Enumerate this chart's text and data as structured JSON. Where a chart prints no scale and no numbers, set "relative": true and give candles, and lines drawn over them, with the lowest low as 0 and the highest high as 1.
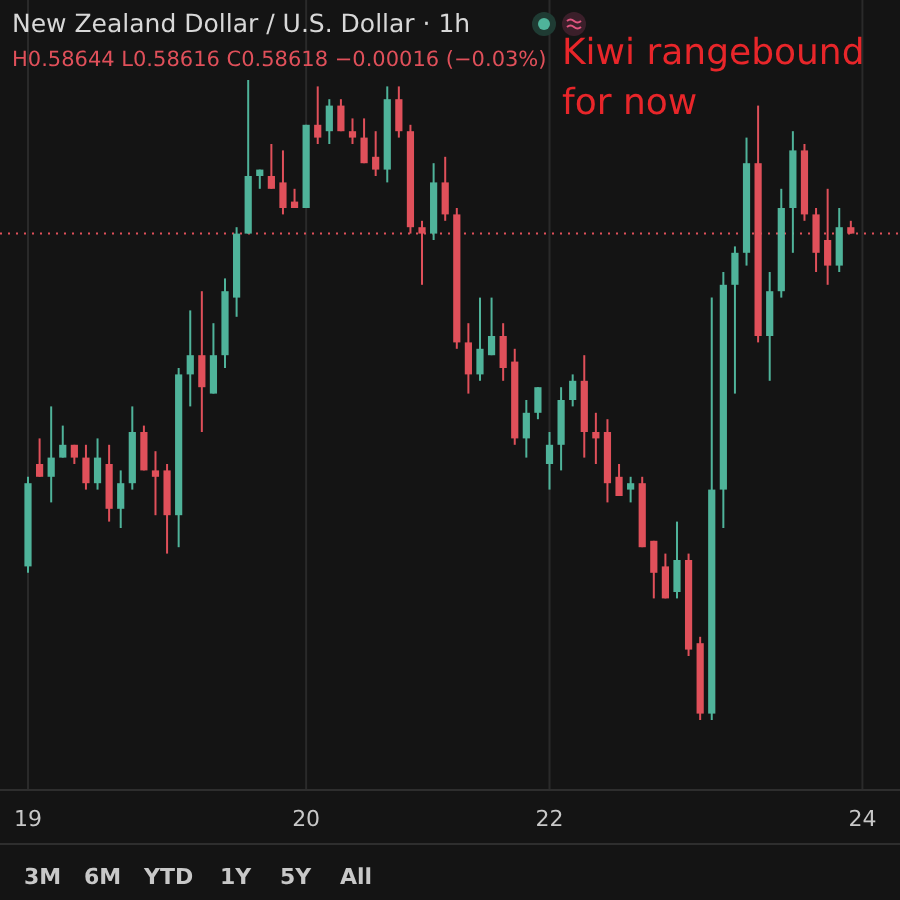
{
  "chart_data": {
    "type": "candlestick",
    "title": "New Zealand Dollar / U.S. Dollar · 1h",
    "subtitle": "H0.58644 L0.58616 C0.58618 −0.00016 (−0.03%)",
    "relative": true,
    "grid": "x",
    "categories": [
      "19",
      null,
      null,
      null,
      null,
      null,
      null,
      null,
      null,
      null,
      null,
      null,
      null,
      null,
      null,
      null,
      null,
      null,
      null,
      null,
      null,
      null,
      null,
      null,
      "20",
      null,
      null,
      null,
      null,
      null,
      null,
      null,
      null,
      null,
      null,
      null,
      null,
      null,
      null,
      null,
      null,
      null,
      null,
      null,
      null,
      "22",
      null,
      null,
      null,
      null,
      null,
      null,
      null,
      null,
      null,
      null,
      null,
      null,
      null,
      null,
      null,
      null,
      null,
      null,
      null,
      null,
      null,
      null,
      null,
      null,
      null,
      null,
      "24",
      null
    ],
    "ohlc": [
      [
        0.24,
        0.38,
        0.23,
        0.37
      ],
      [
        0.4,
        0.44,
        0.38,
        0.38
      ],
      [
        0.38,
        0.49,
        0.34,
        0.41
      ],
      [
        0.41,
        0.46,
        0.41,
        0.43
      ],
      [
        0.43,
        0.43,
        0.4,
        0.41
      ],
      [
        0.41,
        0.43,
        0.36,
        0.37
      ],
      [
        0.37,
        0.44,
        0.36,
        0.41
      ],
      [
        0.4,
        0.43,
        0.31,
        0.33
      ],
      [
        0.33,
        0.39,
        0.3,
        0.37
      ],
      [
        0.37,
        0.49,
        0.36,
        0.45
      ],
      [
        0.45,
        0.46,
        0.39,
        0.39
      ],
      [
        0.39,
        0.42,
        0.32,
        0.38
      ],
      [
        0.39,
        0.4,
        0.26,
        0.32
      ],
      [
        0.32,
        0.55,
        0.27,
        0.54
      ],
      [
        0.54,
        0.64,
        0.49,
        0.57
      ],
      [
        0.57,
        0.67,
        0.45,
        0.52
      ],
      [
        0.51,
        0.62,
        0.51,
        0.57
      ],
      [
        0.57,
        0.69,
        0.55,
        0.67
      ],
      [
        0.66,
        0.77,
        0.63,
        0.76
      ],
      [
        0.76,
        1.0,
        0.76,
        0.85
      ],
      [
        0.85,
        0.86,
        0.83,
        0.86
      ],
      [
        0.85,
        0.9,
        0.83,
        0.83
      ],
      [
        0.84,
        0.89,
        0.79,
        0.8
      ],
      [
        0.81,
        0.83,
        0.8,
        0.8
      ],
      [
        0.8,
        0.93,
        0.8,
        0.93
      ],
      [
        0.93,
        0.99,
        0.9,
        0.91
      ],
      [
        0.92,
        0.97,
        0.9,
        0.96
      ],
      [
        0.96,
        0.97,
        0.92,
        0.92
      ],
      [
        0.92,
        0.94,
        0.9,
        0.91
      ],
      [
        0.91,
        0.94,
        0.87,
        0.87
      ],
      [
        0.88,
        0.92,
        0.85,
        0.86
      ],
      [
        0.86,
        0.99,
        0.84,
        0.97
      ],
      [
        0.97,
        0.99,
        0.91,
        0.92
      ],
      [
        0.92,
        0.93,
        0.76,
        0.77
      ],
      [
        0.77,
        0.78,
        0.68,
        0.76
      ],
      [
        0.76,
        0.87,
        0.75,
        0.84
      ],
      [
        0.84,
        0.88,
        0.78,
        0.79
      ],
      [
        0.79,
        0.8,
        0.58,
        0.59
      ],
      [
        0.59,
        0.62,
        0.51,
        0.54
      ],
      [
        0.54,
        0.66,
        0.53,
        0.58
      ],
      [
        0.57,
        0.66,
        0.57,
        0.6
      ],
      [
        0.6,
        0.62,
        0.53,
        0.55
      ],
      [
        0.56,
        0.58,
        0.43,
        0.44
      ],
      [
        0.44,
        0.5,
        0.41,
        0.48
      ],
      [
        0.48,
        0.52,
        0.47,
        0.52
      ],
      [
        0.4,
        0.45,
        0.36,
        0.43
      ],
      [
        0.43,
        0.52,
        0.39,
        0.5
      ],
      [
        0.5,
        0.54,
        0.49,
        0.53
      ],
      [
        0.53,
        0.57,
        0.41,
        0.45
      ],
      [
        0.45,
        0.48,
        0.4,
        0.44
      ],
      [
        0.45,
        0.47,
        0.34,
        0.37
      ],
      [
        0.38,
        0.4,
        0.35,
        0.35
      ],
      [
        0.36,
        0.38,
        0.34,
        0.37
      ],
      [
        0.37,
        0.38,
        0.27,
        0.27
      ],
      [
        0.28,
        0.28,
        0.19,
        0.23
      ],
      [
        0.24,
        0.26,
        0.19,
        0.19
      ],
      [
        0.2,
        0.31,
        0.19,
        0.25
      ],
      [
        0.25,
        0.26,
        0.1,
        0.11
      ],
      [
        0.12,
        0.13,
        0.0,
        0.01
      ],
      [
        0.01,
        0.66,
        0.0,
        0.36
      ],
      [
        0.36,
        0.7,
        0.3,
        0.68
      ],
      [
        0.68,
        0.74,
        0.51,
        0.73
      ],
      [
        0.73,
        0.91,
        0.71,
        0.87
      ],
      [
        0.87,
        0.96,
        0.59,
        0.6
      ],
      [
        0.6,
        0.7,
        0.53,
        0.67
      ],
      [
        0.67,
        0.83,
        0.66,
        0.8
      ],
      [
        0.8,
        0.92,
        0.73,
        0.89
      ],
      [
        0.89,
        0.9,
        0.78,
        0.79
      ],
      [
        0.79,
        0.8,
        0.7,
        0.73
      ],
      [
        0.75,
        0.83,
        0.68,
        0.71
      ],
      [
        0.71,
        0.8,
        0.7,
        0.77
      ],
      [
        0.77,
        0.78,
        0.76,
        0.76
      ],
      null,
      null
    ],
    "ref_lines": [
      {
        "axis": "y",
        "value": 0.76,
        "color": "#e0505a",
        "line_style": "dotted"
      }
    ],
    "annotations": [
      "Kiwi rangebound for now",
      "3M",
      "6M",
      "YTD",
      "1Y",
      "5Y",
      "All"
    ]
  }
}
